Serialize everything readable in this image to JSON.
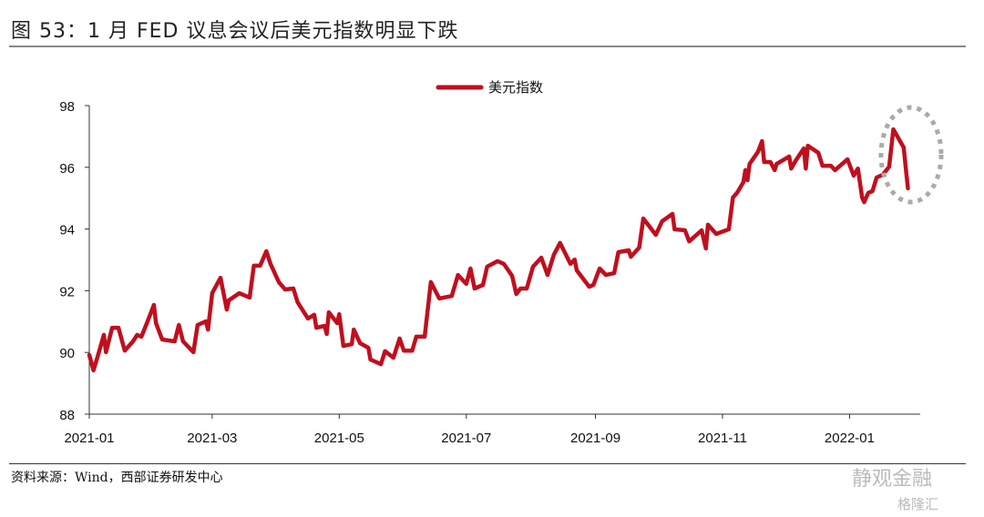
{
  "header": {
    "title": "图 53：1 月 FED 议息会议后美元指数明显下跌"
  },
  "footer": {
    "source": "资料来源：Wind，西部证券研发中心",
    "watermark_1": "静观金融",
    "watermark_2": "格隆汇"
  },
  "chart_data": {
    "type": "line",
    "title": "图 53：1 月 FED 议息会议后美元指数明显下跌",
    "xlabel": "",
    "ylabel": "",
    "ylim": [
      88,
      98
    ],
    "yticks": [
      88,
      90,
      92,
      94,
      96,
      98
    ],
    "xlim": [
      "2021-01-01",
      "2022-02-01"
    ],
    "xticks": [
      "2021-01",
      "2021-03",
      "2021-05",
      "2021-07",
      "2021-09",
      "2021-11",
      "2022-01"
    ],
    "grid": false,
    "legend_position": "top-center",
    "annotation": "dotted gray ellipse highlighting late January 2022 peak and drop",
    "series": [
      {
        "name": "美元指数",
        "color": "#c00f1e",
        "points": [
          [
            "2021-01-01",
            89.92
          ],
          [
            "2021-01-03",
            89.42
          ],
          [
            "2021-01-05",
            89.86
          ],
          [
            "2021-01-08",
            90.57
          ],
          [
            "2021-01-09",
            90.01
          ],
          [
            "2021-01-12",
            90.8
          ],
          [
            "2021-01-15",
            90.8
          ],
          [
            "2021-01-18",
            90.06
          ],
          [
            "2021-01-22",
            90.36
          ],
          [
            "2021-01-24",
            90.57
          ],
          [
            "2021-01-26",
            90.51
          ],
          [
            "2021-01-29",
            91.01
          ],
          [
            "2021-02-01",
            91.54
          ],
          [
            "2021-02-02",
            90.95
          ],
          [
            "2021-02-05",
            90.42
          ],
          [
            "2021-02-11",
            90.36
          ],
          [
            "2021-02-13",
            90.89
          ],
          [
            "2021-02-15",
            90.36
          ],
          [
            "2021-02-20",
            90.01
          ],
          [
            "2021-02-22",
            90.89
          ],
          [
            "2021-02-26",
            91.01
          ],
          [
            "2021-02-27",
            90.74
          ],
          [
            "2021-03-01",
            91.92
          ],
          [
            "2021-03-05",
            92.42
          ],
          [
            "2021-03-08",
            91.39
          ],
          [
            "2021-03-09",
            91.69
          ],
          [
            "2021-03-14",
            91.92
          ],
          [
            "2021-03-19",
            91.78
          ],
          [
            "2021-03-21",
            92.81
          ],
          [
            "2021-03-24",
            92.81
          ],
          [
            "2021-03-27",
            93.28
          ],
          [
            "2021-03-29",
            92.87
          ],
          [
            "2021-04-02",
            92.28
          ],
          [
            "2021-04-05",
            92.04
          ],
          [
            "2021-04-09",
            92.07
          ],
          [
            "2021-04-11",
            91.63
          ],
          [
            "2021-04-16",
            91.1
          ],
          [
            "2021-04-19",
            91.22
          ],
          [
            "2021-04-20",
            90.8
          ],
          [
            "2021-04-24",
            90.86
          ],
          [
            "2021-04-25",
            90.6
          ],
          [
            "2021-04-26",
            91.3
          ],
          [
            "2021-04-30",
            90.95
          ],
          [
            "2021-05-01",
            91.24
          ],
          [
            "2021-05-03",
            90.21
          ],
          [
            "2021-05-07",
            90.27
          ],
          [
            "2021-05-08",
            90.74
          ],
          [
            "2021-05-11",
            90.3
          ],
          [
            "2021-05-15",
            90.15
          ],
          [
            "2021-05-16",
            89.77
          ],
          [
            "2021-05-21",
            89.62
          ],
          [
            "2021-05-23",
            90.04
          ],
          [
            "2021-05-27",
            89.83
          ],
          [
            "2021-05-30",
            90.45
          ],
          [
            "2021-06-01",
            90.06
          ],
          [
            "2021-06-05",
            90.06
          ],
          [
            "2021-06-07",
            90.51
          ],
          [
            "2021-06-11",
            90.51
          ],
          [
            "2021-06-14",
            92.28
          ],
          [
            "2021-06-18",
            91.75
          ],
          [
            "2021-06-24",
            91.83
          ],
          [
            "2021-06-27",
            92.51
          ],
          [
            "2021-07-01",
            92.22
          ],
          [
            "2021-07-03",
            92.72
          ],
          [
            "2021-07-05",
            92.07
          ],
          [
            "2021-07-09",
            92.19
          ],
          [
            "2021-07-11",
            92.78
          ],
          [
            "2021-07-16",
            92.96
          ],
          [
            "2021-07-19",
            92.87
          ],
          [
            "2021-07-23",
            92.48
          ],
          [
            "2021-07-25",
            91.89
          ],
          [
            "2021-07-27",
            92.07
          ],
          [
            "2021-07-30",
            92.07
          ],
          [
            "2021-08-02",
            92.78
          ],
          [
            "2021-08-06",
            93.07
          ],
          [
            "2021-08-09",
            92.51
          ],
          [
            "2021-08-12",
            93.16
          ],
          [
            "2021-08-15",
            93.55
          ],
          [
            "2021-08-20",
            92.87
          ],
          [
            "2021-08-22",
            93.01
          ],
          [
            "2021-08-23",
            92.66
          ],
          [
            "2021-08-29",
            92.13
          ],
          [
            "2021-08-31",
            92.19
          ],
          [
            "2021-09-03",
            92.72
          ],
          [
            "2021-09-06",
            92.51
          ],
          [
            "2021-09-10",
            92.57
          ],
          [
            "2021-09-12",
            93.25
          ],
          [
            "2021-09-17",
            93.31
          ],
          [
            "2021-09-18",
            93.1
          ],
          [
            "2021-09-22",
            93.4
          ],
          [
            "2021-09-24",
            94.34
          ],
          [
            "2021-09-30",
            93.81
          ],
          [
            "2021-10-03",
            94.25
          ],
          [
            "2021-10-08",
            94.49
          ],
          [
            "2021-10-09",
            93.99
          ],
          [
            "2021-10-14",
            93.96
          ],
          [
            "2021-10-16",
            93.6
          ],
          [
            "2021-10-22",
            93.96
          ],
          [
            "2021-10-24",
            93.37
          ],
          [
            "2021-10-25",
            94.14
          ],
          [
            "2021-10-29",
            93.84
          ],
          [
            "2021-11-04",
            93.99
          ],
          [
            "2021-11-06",
            95.02
          ],
          [
            "2021-11-08",
            95.17
          ],
          [
            "2021-11-11",
            95.52
          ],
          [
            "2021-11-12",
            95.91
          ],
          [
            "2021-11-13",
            95.58
          ],
          [
            "2021-11-14",
            96.11
          ],
          [
            "2021-11-18",
            96.5
          ],
          [
            "2021-11-20",
            96.85
          ],
          [
            "2021-11-21",
            96.17
          ],
          [
            "2021-11-24",
            96.17
          ],
          [
            "2021-11-26",
            95.91
          ],
          [
            "2021-11-27",
            96.11
          ],
          [
            "2021-12-03",
            96.35
          ],
          [
            "2021-12-04",
            95.96
          ],
          [
            "2021-12-06",
            96.2
          ],
          [
            "2021-12-10",
            96.61
          ],
          [
            "2021-12-11",
            95.96
          ],
          [
            "2021-12-12",
            96.7
          ],
          [
            "2021-12-17",
            96.47
          ],
          [
            "2021-12-19",
            96.05
          ],
          [
            "2021-12-23",
            96.05
          ],
          [
            "2021-12-25",
            95.91
          ],
          [
            "2021-12-31",
            96.26
          ],
          [
            "2022-01-03",
            95.73
          ],
          [
            "2022-01-05",
            95.96
          ],
          [
            "2022-01-07",
            95.02
          ],
          [
            "2022-01-08",
            94.87
          ],
          [
            "2022-01-10",
            95.17
          ],
          [
            "2022-01-12",
            95.23
          ],
          [
            "2022-01-14",
            95.67
          ],
          [
            "2022-01-17",
            95.76
          ],
          [
            "2022-01-20",
            96.02
          ],
          [
            "2022-01-22",
            97.23
          ],
          [
            "2022-01-27",
            96.64
          ],
          [
            "2022-01-28",
            95.96
          ],
          [
            "2022-01-29",
            95.32
          ]
        ]
      }
    ]
  }
}
